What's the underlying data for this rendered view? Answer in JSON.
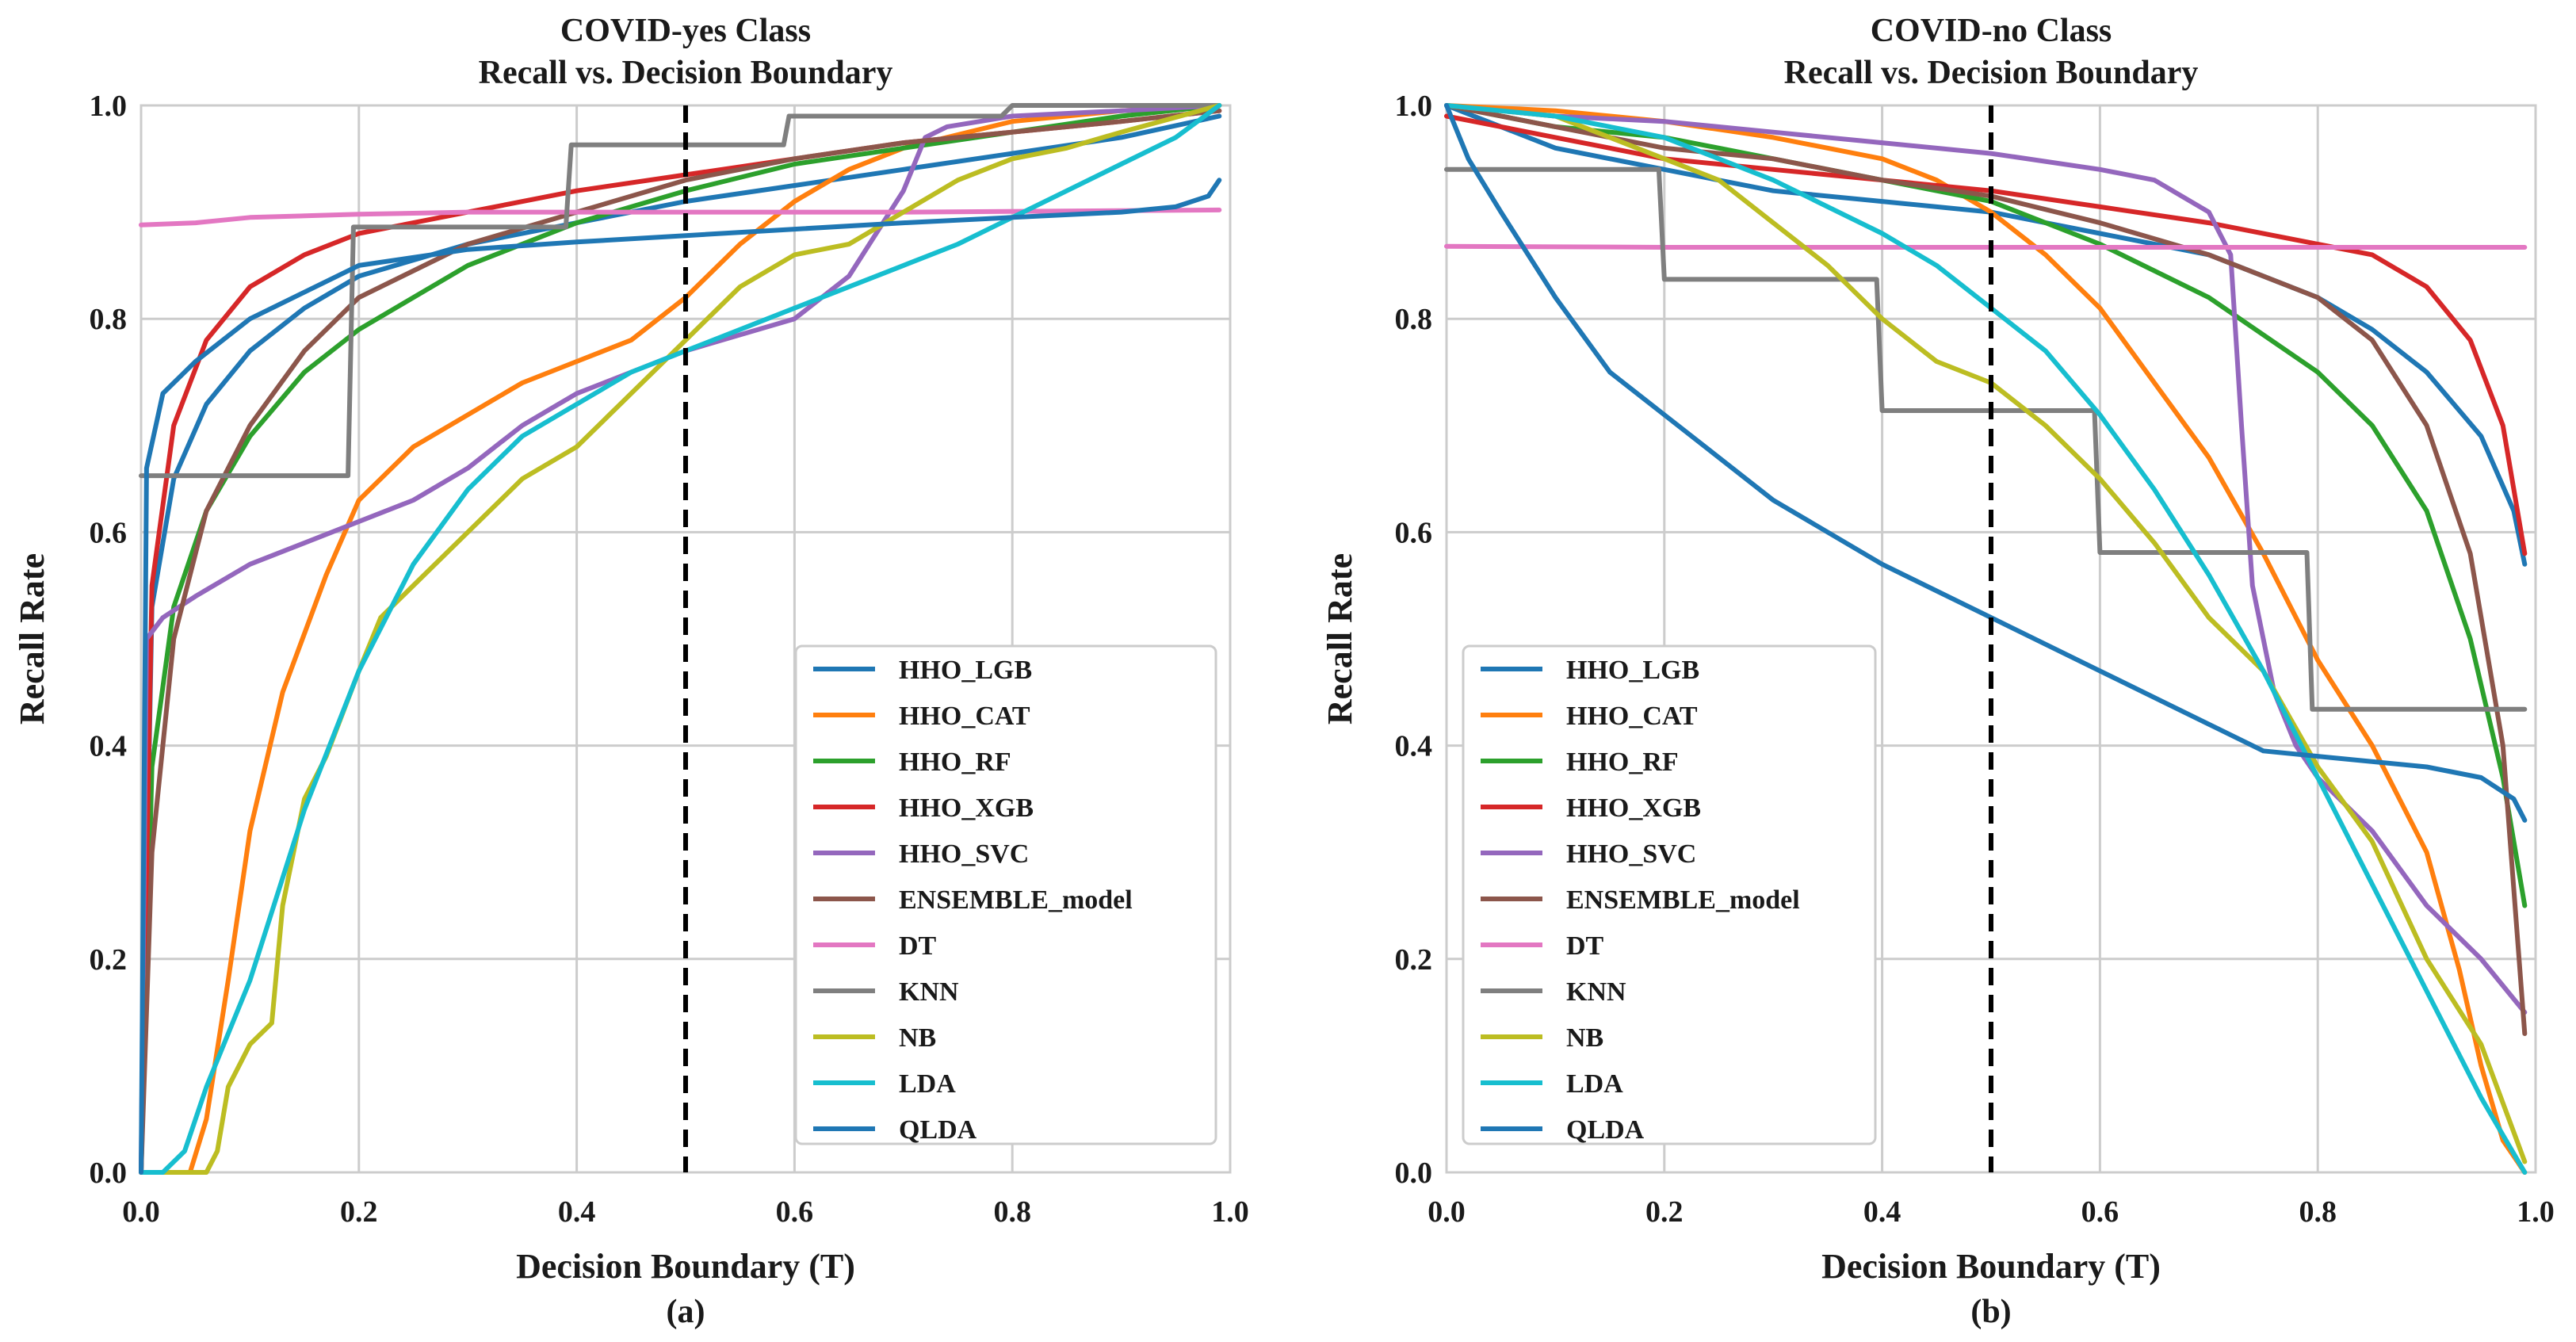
{
  "colors": {
    "HHO_LGB": "#1f77b4",
    "HHO_CAT": "#ff7f0e",
    "HHO_RF": "#2ca02c",
    "HHO_XGB": "#d62728",
    "HHO_SVC": "#9467bd",
    "ENSEMBLE_model": "#8c564b",
    "DT": "#e377c2",
    "KNN": "#7f7f7f",
    "NB": "#bcbd22",
    "LDA": "#17becf",
    "QLDA": "#1f77b4",
    "grid": "#cccccc",
    "boundary": "#000000"
  },
  "chart_data": [
    {
      "type": "line",
      "title": "COVID-yes Class",
      "subtitle": "Recall vs. Decision Boundary",
      "xlabel": "Decision Boundary (T)",
      "ylabel": "Recall Rate",
      "caption": "(a)",
      "xlim": [
        0,
        1
      ],
      "ylim": [
        0,
        1
      ],
      "xticks": [
        "0.0",
        "0.2",
        "0.4",
        "0.6",
        "0.8",
        "1.0"
      ],
      "yticks": [
        "0.0",
        "0.2",
        "0.4",
        "0.6",
        "0.8",
        "1.0"
      ],
      "grid": true,
      "legend_position": "bottom-right",
      "decision_boundary": 0.5,
      "series": [
        {
          "name": "HHO_LGB",
          "x": [
            0,
            0.01,
            0.03,
            0.06,
            0.1,
            0.15,
            0.2,
            0.3,
            0.4,
            0.5,
            0.6,
            0.7,
            0.8,
            0.9,
            0.99
          ],
          "y": [
            0,
            0.53,
            0.65,
            0.72,
            0.77,
            0.81,
            0.84,
            0.87,
            0.89,
            0.91,
            0.925,
            0.94,
            0.955,
            0.97,
            0.99
          ]
        },
        {
          "name": "HHO_CAT",
          "x": [
            0,
            0.045,
            0.06,
            0.08,
            0.1,
            0.13,
            0.17,
            0.2,
            0.25,
            0.3,
            0.35,
            0.4,
            0.45,
            0.5,
            0.55,
            0.6,
            0.65,
            0.7,
            0.8,
            0.9,
            0.99
          ],
          "y": [
            0,
            0,
            0.05,
            0.18,
            0.32,
            0.45,
            0.56,
            0.63,
            0.68,
            0.71,
            0.74,
            0.76,
            0.78,
            0.82,
            0.87,
            0.91,
            0.94,
            0.96,
            0.985,
            0.995,
            1.0
          ]
        },
        {
          "name": "HHO_RF",
          "x": [
            0,
            0.01,
            0.03,
            0.06,
            0.1,
            0.15,
            0.2,
            0.3,
            0.4,
            0.5,
            0.6,
            0.7,
            0.8,
            0.9,
            0.99
          ],
          "y": [
            0,
            0.38,
            0.53,
            0.62,
            0.69,
            0.75,
            0.79,
            0.85,
            0.89,
            0.92,
            0.945,
            0.96,
            0.975,
            0.99,
            1.0
          ]
        },
        {
          "name": "HHO_XGB",
          "x": [
            0,
            0.01,
            0.03,
            0.06,
            0.1,
            0.15,
            0.2,
            0.3,
            0.4,
            0.5,
            0.6,
            0.7,
            0.8,
            0.9,
            0.99
          ],
          "y": [
            0,
            0.55,
            0.7,
            0.78,
            0.83,
            0.86,
            0.88,
            0.9,
            0.92,
            0.935,
            0.95,
            0.965,
            0.975,
            0.985,
            0.995
          ]
        },
        {
          "name": "HHO_SVC",
          "x": [
            0,
            0.005,
            0.02,
            0.05,
            0.1,
            0.15,
            0.2,
            0.25,
            0.3,
            0.35,
            0.4,
            0.45,
            0.5,
            0.55,
            0.6,
            0.65,
            0.7,
            0.72,
            0.74,
            0.8,
            0.9,
            0.99
          ],
          "y": [
            0,
            0.5,
            0.52,
            0.54,
            0.57,
            0.59,
            0.61,
            0.63,
            0.66,
            0.7,
            0.73,
            0.75,
            0.77,
            0.785,
            0.8,
            0.84,
            0.92,
            0.97,
            0.98,
            0.99,
            0.995,
            1.0
          ]
        },
        {
          "name": "ENSEMBLE_model",
          "x": [
            0,
            0.01,
            0.03,
            0.06,
            0.1,
            0.15,
            0.2,
            0.3,
            0.4,
            0.5,
            0.6,
            0.7,
            0.8,
            0.9,
            0.99
          ],
          "y": [
            0,
            0.3,
            0.5,
            0.62,
            0.7,
            0.77,
            0.82,
            0.87,
            0.9,
            0.93,
            0.95,
            0.965,
            0.975,
            0.985,
            0.995
          ]
        },
        {
          "name": "DT",
          "x": [
            0,
            0.05,
            0.1,
            0.2,
            0.3,
            0.5,
            0.7,
            0.99
          ],
          "y": [
            0.888,
            0.89,
            0.895,
            0.898,
            0.9,
            0.9,
            0.9,
            0.902
          ]
        },
        {
          "name": "KNN",
          "x": [
            0,
            0.19,
            0.195,
            0.39,
            0.395,
            0.59,
            0.595,
            0.79,
            0.8,
            0.99
          ],
          "y": [
            0.653,
            0.653,
            0.886,
            0.886,
            0.963,
            0.963,
            0.99,
            0.99,
            1.0,
            1.0
          ]
        },
        {
          "name": "NB",
          "x": [
            0,
            0.06,
            0.07,
            0.08,
            0.1,
            0.12,
            0.13,
            0.15,
            0.17,
            0.2,
            0.22,
            0.25,
            0.3,
            0.35,
            0.4,
            0.45,
            0.5,
            0.55,
            0.6,
            0.65,
            0.7,
            0.75,
            0.8,
            0.85,
            0.9,
            0.99
          ],
          "y": [
            0,
            0,
            0.02,
            0.08,
            0.12,
            0.14,
            0.25,
            0.35,
            0.39,
            0.47,
            0.52,
            0.55,
            0.6,
            0.65,
            0.68,
            0.73,
            0.78,
            0.83,
            0.86,
            0.87,
            0.9,
            0.93,
            0.95,
            0.96,
            0.975,
            1.0
          ]
        },
        {
          "name": "LDA",
          "x": [
            0,
            0.02,
            0.04,
            0.06,
            0.1,
            0.15,
            0.2,
            0.25,
            0.3,
            0.35,
            0.4,
            0.45,
            0.5,
            0.55,
            0.6,
            0.65,
            0.7,
            0.75,
            0.8,
            0.85,
            0.9,
            0.95,
            0.99
          ],
          "y": [
            0,
            0,
            0.02,
            0.08,
            0.18,
            0.34,
            0.47,
            0.57,
            0.64,
            0.69,
            0.72,
            0.75,
            0.77,
            0.79,
            0.81,
            0.83,
            0.85,
            0.87,
            0.895,
            0.92,
            0.945,
            0.97,
            1.0
          ]
        },
        {
          "name": "QLDA",
          "x": [
            0,
            0.005,
            0.02,
            0.05,
            0.1,
            0.2,
            0.3,
            0.4,
            0.5,
            0.6,
            0.7,
            0.8,
            0.9,
            0.95,
            0.98,
            0.99
          ],
          "y": [
            0,
            0.66,
            0.73,
            0.76,
            0.8,
            0.85,
            0.865,
            0.872,
            0.878,
            0.884,
            0.89,
            0.895,
            0.9,
            0.905,
            0.915,
            0.93
          ]
        }
      ]
    },
    {
      "type": "line",
      "title": "COVID-no Class",
      "subtitle": "Recall vs. Decision Boundary",
      "xlabel": "Decision Boundary (T)",
      "ylabel": "Recall Rate",
      "caption": "(b)",
      "xlim": [
        0,
        1
      ],
      "ylim": [
        0,
        1
      ],
      "xticks": [
        "0.0",
        "0.2",
        "0.4",
        "0.6",
        "0.8",
        "1.0"
      ],
      "yticks": [
        "0.0",
        "0.2",
        "0.4",
        "0.6",
        "0.8",
        "1.0"
      ],
      "grid": true,
      "legend_position": "bottom-left",
      "decision_boundary": 0.5,
      "series": [
        {
          "name": "HHO_LGB",
          "x": [
            0,
            0.1,
            0.2,
            0.3,
            0.4,
            0.5,
            0.6,
            0.7,
            0.8,
            0.85,
            0.9,
            0.95,
            0.98,
            0.99
          ],
          "y": [
            1.0,
            0.96,
            0.94,
            0.92,
            0.91,
            0.9,
            0.88,
            0.86,
            0.82,
            0.79,
            0.75,
            0.69,
            0.62,
            0.57
          ]
        },
        {
          "name": "HHO_CAT",
          "x": [
            0,
            0.1,
            0.2,
            0.3,
            0.4,
            0.45,
            0.5,
            0.55,
            0.6,
            0.65,
            0.7,
            0.75,
            0.8,
            0.85,
            0.9,
            0.93,
            0.95,
            0.97,
            0.99
          ],
          "y": [
            1.0,
            0.995,
            0.985,
            0.97,
            0.95,
            0.93,
            0.9,
            0.86,
            0.81,
            0.74,
            0.67,
            0.58,
            0.48,
            0.4,
            0.3,
            0.19,
            0.1,
            0.03,
            0.0
          ]
        },
        {
          "name": "HHO_RF",
          "x": [
            0,
            0.1,
            0.2,
            0.3,
            0.4,
            0.5,
            0.6,
            0.7,
            0.8,
            0.85,
            0.9,
            0.94,
            0.97,
            0.99
          ],
          "y": [
            1.0,
            0.98,
            0.97,
            0.95,
            0.93,
            0.91,
            0.87,
            0.82,
            0.75,
            0.7,
            0.62,
            0.5,
            0.37,
            0.25
          ]
        },
        {
          "name": "HHO_XGB",
          "x": [
            0,
            0.1,
            0.2,
            0.3,
            0.4,
            0.5,
            0.6,
            0.7,
            0.8,
            0.85,
            0.9,
            0.94,
            0.97,
            0.99
          ],
          "y": [
            0.99,
            0.97,
            0.95,
            0.94,
            0.93,
            0.92,
            0.905,
            0.89,
            0.87,
            0.86,
            0.83,
            0.78,
            0.7,
            0.58
          ]
        },
        {
          "name": "HHO_SVC",
          "x": [
            0,
            0.1,
            0.2,
            0.3,
            0.4,
            0.5,
            0.6,
            0.65,
            0.7,
            0.72,
            0.73,
            0.74,
            0.76,
            0.78,
            0.8,
            0.85,
            0.9,
            0.95,
            0.99
          ],
          "y": [
            1.0,
            0.99,
            0.985,
            0.975,
            0.965,
            0.955,
            0.94,
            0.93,
            0.9,
            0.86,
            0.7,
            0.55,
            0.45,
            0.4,
            0.37,
            0.32,
            0.25,
            0.2,
            0.15
          ]
        },
        {
          "name": "ENSEMBLE_model",
          "x": [
            0,
            0.1,
            0.2,
            0.3,
            0.4,
            0.5,
            0.6,
            0.7,
            0.8,
            0.85,
            0.9,
            0.94,
            0.97,
            0.99
          ],
          "y": [
            1.0,
            0.98,
            0.96,
            0.95,
            0.93,
            0.915,
            0.89,
            0.86,
            0.82,
            0.78,
            0.7,
            0.58,
            0.4,
            0.13
          ]
        },
        {
          "name": "DT",
          "x": [
            0,
            0.2,
            0.5,
            0.8,
            0.99
          ],
          "y": [
            0.868,
            0.867,
            0.867,
            0.867,
            0.867
          ]
        },
        {
          "name": "KNN",
          "x": [
            0,
            0.195,
            0.2,
            0.395,
            0.4,
            0.595,
            0.6,
            0.79,
            0.795,
            0.99
          ],
          "y": [
            0.94,
            0.94,
            0.837,
            0.837,
            0.714,
            0.714,
            0.581,
            0.581,
            0.434,
            0.434
          ]
        },
        {
          "name": "NB",
          "x": [
            0,
            0.1,
            0.2,
            0.25,
            0.3,
            0.35,
            0.4,
            0.45,
            0.5,
            0.55,
            0.6,
            0.65,
            0.7,
            0.75,
            0.8,
            0.85,
            0.9,
            0.95,
            0.99
          ],
          "y": [
            1.0,
            0.99,
            0.95,
            0.93,
            0.89,
            0.85,
            0.8,
            0.76,
            0.74,
            0.7,
            0.65,
            0.59,
            0.52,
            0.47,
            0.38,
            0.31,
            0.2,
            0.12,
            0.01
          ]
        },
        {
          "name": "LDA",
          "x": [
            0,
            0.1,
            0.2,
            0.3,
            0.4,
            0.45,
            0.5,
            0.55,
            0.6,
            0.65,
            0.7,
            0.75,
            0.8,
            0.85,
            0.9,
            0.95,
            0.99
          ],
          "y": [
            1.0,
            0.99,
            0.97,
            0.93,
            0.88,
            0.85,
            0.81,
            0.77,
            0.71,
            0.64,
            0.56,
            0.47,
            0.37,
            0.27,
            0.17,
            0.07,
            0.0
          ]
        },
        {
          "name": "QLDA",
          "x": [
            0,
            0.02,
            0.05,
            0.1,
            0.15,
            0.2,
            0.3,
            0.4,
            0.5,
            0.6,
            0.7,
            0.75,
            0.8,
            0.9,
            0.95,
            0.98,
            0.99
          ],
          "y": [
            1.0,
            0.95,
            0.9,
            0.82,
            0.75,
            0.71,
            0.63,
            0.57,
            0.52,
            0.47,
            0.42,
            0.395,
            0.39,
            0.38,
            0.37,
            0.35,
            0.33
          ]
        }
      ]
    }
  ]
}
